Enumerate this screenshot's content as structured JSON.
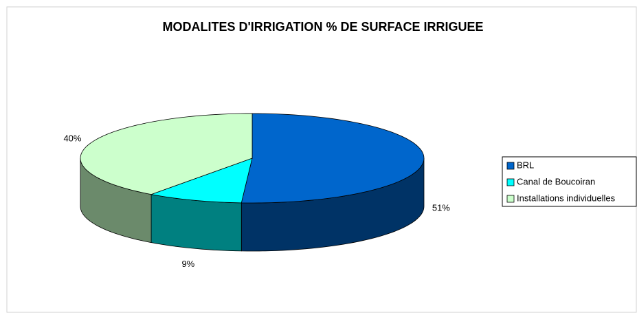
{
  "chart_data": {
    "type": "pie3d",
    "title": "MODALITES D'IRRIGATION % DE SURFACE IRRIGUEE",
    "categories": [
      "BRL",
      "Canal de Boucoiran",
      "Installations individuelles"
    ],
    "values": [
      51,
      9,
      40
    ],
    "value_labels": [
      "51%",
      "9%",
      "40%"
    ],
    "colors": [
      "#0066cc",
      "#00ffff",
      "#ccffcc"
    ],
    "side_colors": [
      "#003366",
      "#008080",
      "#6b8a6b"
    ],
    "legend": "right"
  }
}
